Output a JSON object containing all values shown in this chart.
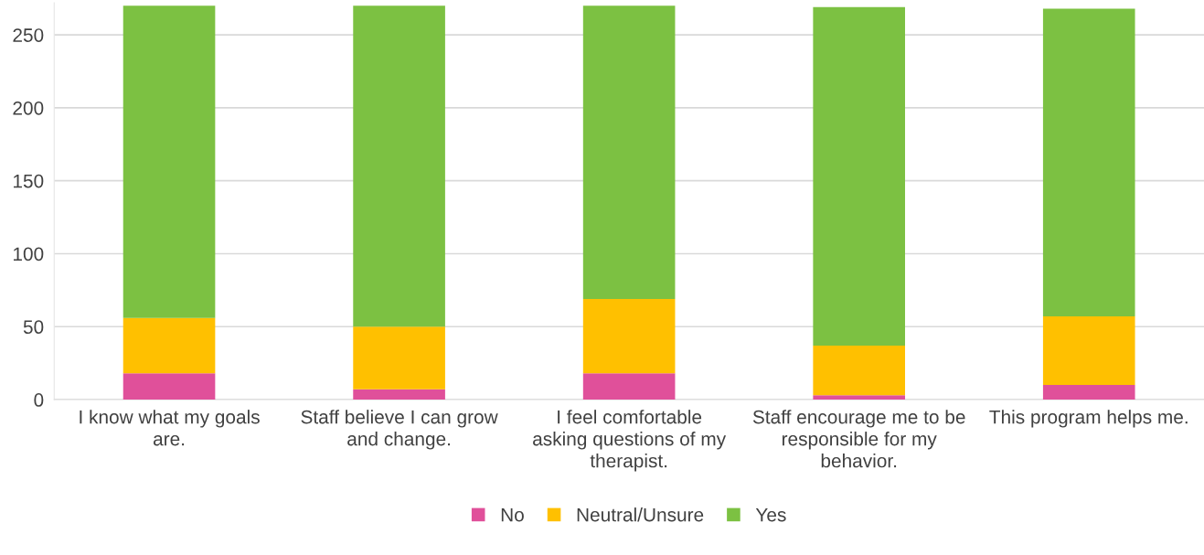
{
  "chart_data": {
    "type": "bar",
    "stacked": true,
    "categories": [
      "I know what my goals are.",
      "Staff believe I can grow and change.",
      "I feel comfortable asking questions of my therapist.",
      "Staff encourage me to be responsible for my behavior.",
      "This program helps me."
    ],
    "series": [
      {
        "name": "No",
        "color": "#e0509a",
        "values": [
          18,
          7,
          18,
          3,
          10
        ]
      },
      {
        "name": "Neutral/Unsure",
        "color": "#ffc000",
        "values": [
          38,
          43,
          51,
          34,
          47
        ]
      },
      {
        "name": "Yes",
        "color": "#7cc142",
        "values": [
          214,
          220,
          201,
          232,
          211
        ]
      }
    ],
    "ylim": [
      0,
      272
    ],
    "yticks": [
      0,
      50,
      100,
      150,
      200,
      250
    ],
    "grid": "y",
    "legend": "bottom"
  }
}
